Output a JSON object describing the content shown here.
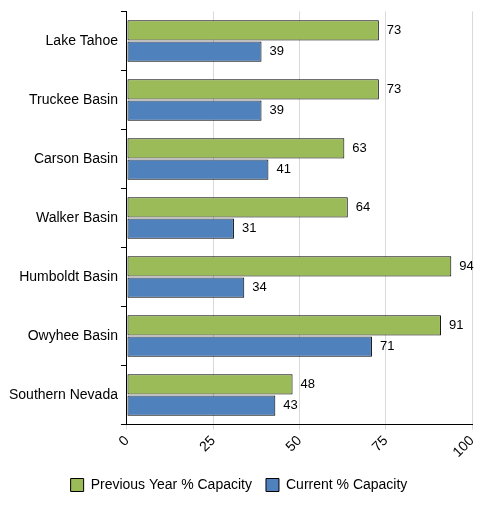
{
  "chart_data": {
    "type": "bar",
    "orientation": "horizontal",
    "categories": [
      "Lake Tahoe",
      "Truckee Basin",
      "Carson Basin",
      "Walker Basin",
      "Humboldt Basin",
      "Owyhee Basin",
      "Southern Nevada"
    ],
    "series": [
      {
        "name": "Previous Year % Capacity",
        "color": "#9bbb59",
        "values": [
          73,
          73,
          63,
          64,
          94,
          91,
          48
        ]
      },
      {
        "name": "Current % Capacity",
        "color": "#4f81bd",
        "values": [
          39,
          39,
          41,
          31,
          34,
          71,
          43
        ]
      }
    ],
    "xlim": [
      0,
      100
    ],
    "xticks": [
      0,
      25,
      50,
      75,
      100
    ],
    "grid": true,
    "legend": "bottom",
    "data_labels": true
  }
}
